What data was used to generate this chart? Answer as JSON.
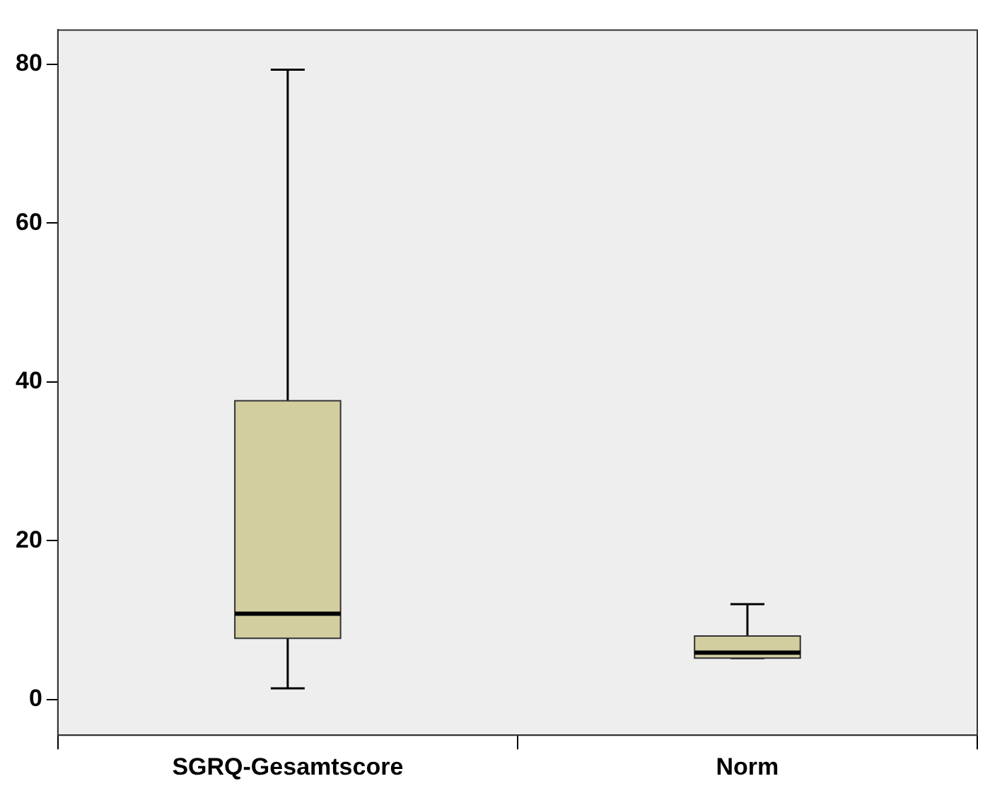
{
  "chart_data": {
    "type": "box",
    "categories": [
      "SGRQ-Gesamtscore",
      "Norm"
    ],
    "boxes": [
      {
        "low": 1.4,
        "q1": 7.7,
        "median": 10.8,
        "q3": 37.6,
        "high": 79.3
      },
      {
        "low": 5.2,
        "q1": 5.2,
        "median": 5.9,
        "q3": 8.0,
        "high": 12.0
      }
    ],
    "color": "#d3cea0",
    "ylim": [
      -4.5,
      84.3
    ],
    "yticks": [
      0,
      20,
      40,
      60,
      80
    ],
    "grid": false
  }
}
